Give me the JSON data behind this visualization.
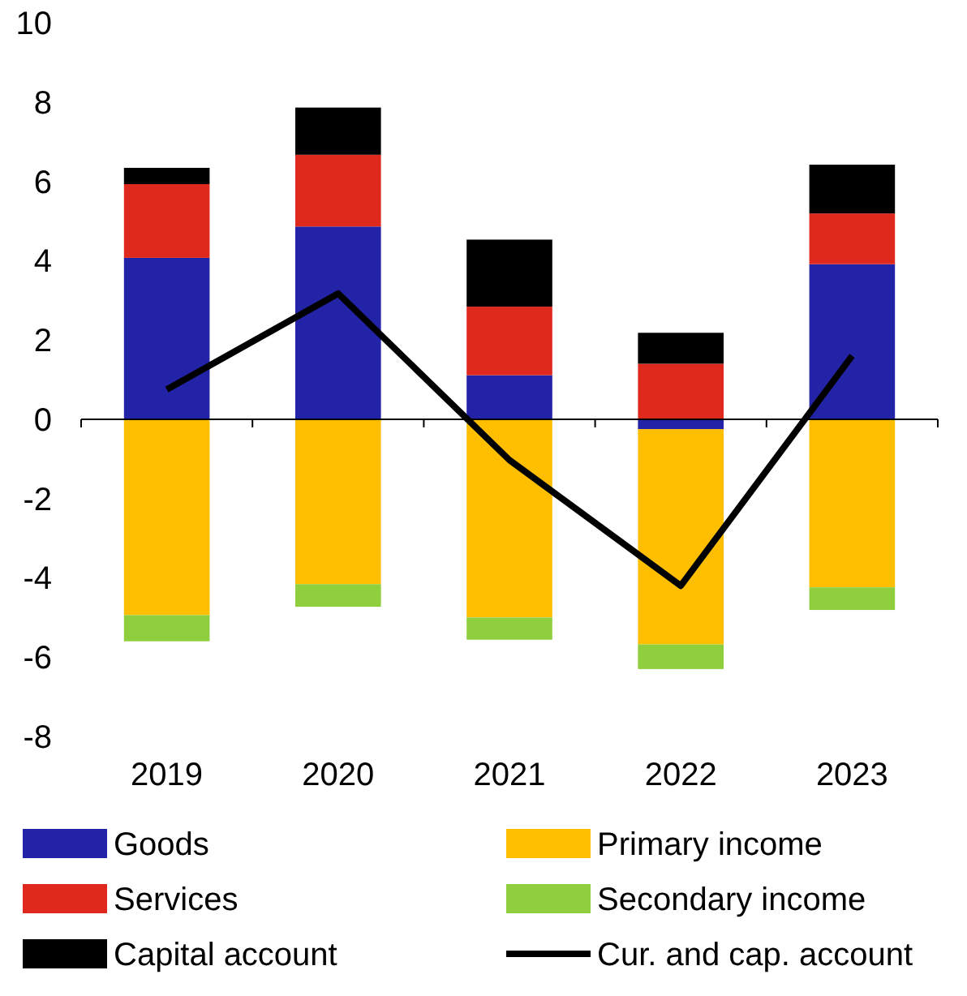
{
  "chart_data": {
    "type": "bar",
    "stacked": true,
    "categories": [
      "2019",
      "2020",
      "2021",
      "2022",
      "2023"
    ],
    "series": [
      {
        "name": "Goods",
        "color": "#2323a8",
        "values": [
          4.07,
          4.86,
          1.11,
          -0.25,
          3.91
        ]
      },
      {
        "name": "Primary income",
        "color": "#ffbf00",
        "values": [
          -4.94,
          -4.16,
          -5.0,
          -5.43,
          -4.24
        ]
      },
      {
        "name": "Services",
        "color": "#e0291d",
        "values": [
          1.86,
          1.81,
          1.73,
          1.4,
          1.28
        ]
      },
      {
        "name": "Secondary income",
        "color": "#8fce3c",
        "values": [
          -0.66,
          -0.57,
          -0.56,
          -0.62,
          -0.57
        ]
      },
      {
        "name": "Capital account",
        "color": "#000000",
        "values": [
          0.41,
          1.19,
          1.69,
          0.78,
          1.23
        ]
      },
      {
        "name": "Cur. and cap. account",
        "type": "line",
        "color": "#000000",
        "values": [
          0.75,
          3.17,
          -1.03,
          -4.2,
          1.6
        ]
      }
    ],
    "ylim": [
      -8,
      10
    ],
    "yticks": [
      -8,
      -6,
      -4,
      -2,
      0,
      2,
      4,
      6,
      8,
      10
    ],
    "legend": "bottom"
  }
}
